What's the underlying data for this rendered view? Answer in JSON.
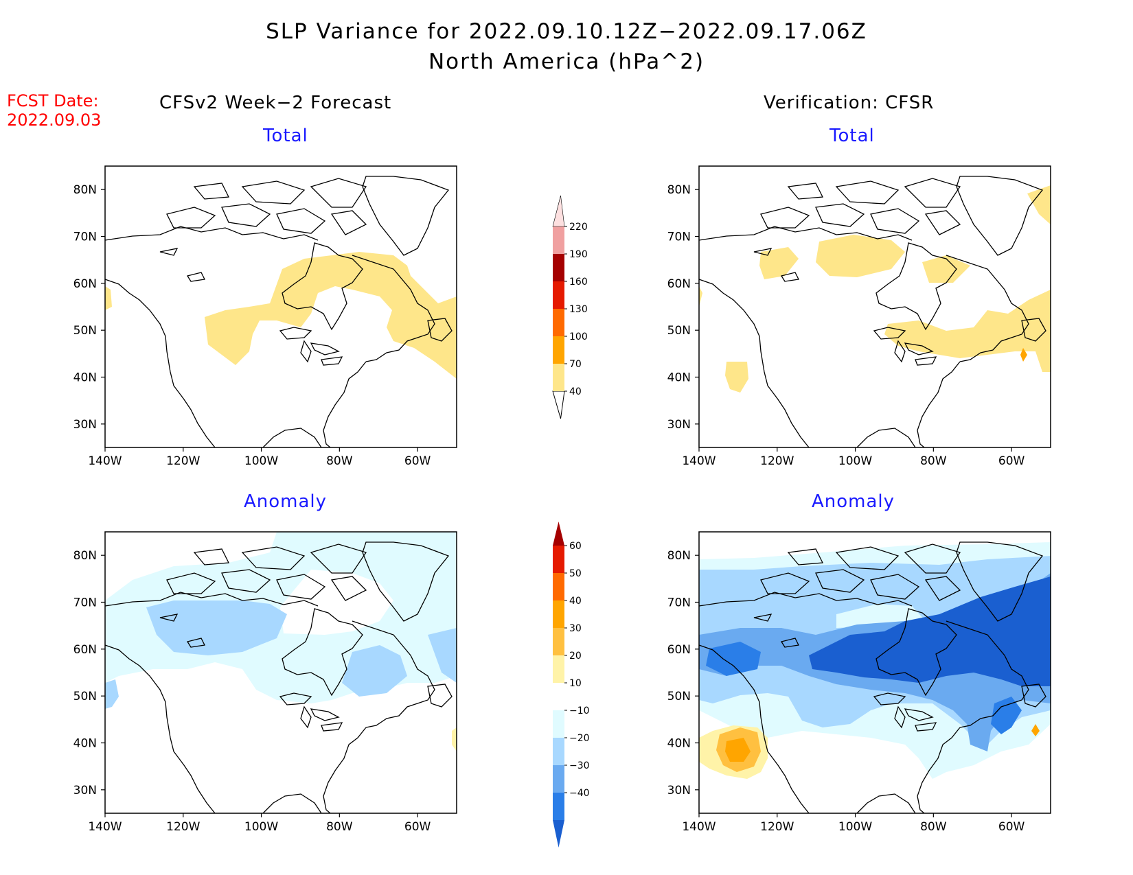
{
  "header": {
    "title_line1": "SLP Variance for 2022.09.10.12Z−2022.09.17.06Z",
    "title_line2": "North America (hPa^2)",
    "fcst_label": "FCST Date:",
    "fcst_date": "2022.09.03"
  },
  "columns": {
    "left": "CFSv2 Week−2 Forecast",
    "right": "Verification: CFSR"
  },
  "panels": [
    {
      "id": "forecast-total",
      "title": "Total"
    },
    {
      "id": "verification-total",
      "title": "Total"
    },
    {
      "id": "forecast-anomaly",
      "title": "Anomaly"
    },
    {
      "id": "verification-anomaly",
      "title": "Anomaly"
    }
  ],
  "map_axes": {
    "lat_labels": [
      "80N",
      "70N",
      "60N",
      "50N",
      "40N",
      "30N"
    ],
    "lon_labels": [
      "140W",
      "120W",
      "100W",
      "80W",
      "60W"
    ],
    "lat_range": [
      25,
      85
    ],
    "lon_range": [
      -140,
      -50
    ]
  },
  "colorbar_total": {
    "levels": [
      "40",
      "70",
      "100",
      "130",
      "160",
      "190",
      "220"
    ],
    "colors": [
      "#fee68a",
      "#ffa500",
      "#ff6a00",
      "#e51a00",
      "#a50000",
      "#f0a0a0",
      "#fde0e0"
    ]
  },
  "colorbar_anomaly": {
    "levels": [
      "60",
      "50",
      "40",
      "30",
      "20",
      "10",
      "−10",
      "−20",
      "−30",
      "−40"
    ],
    "colors_top_to_bottom": [
      "#a50000",
      "#e51a00",
      "#ff6a00",
      "#ffa500",
      "#ffc040",
      "#fff3a8",
      "#ffffff",
      "#e0fbff",
      "#a8d8ff",
      "#6aaaf0",
      "#2a7ee8",
      "#1a5fd0"
    ]
  }
}
